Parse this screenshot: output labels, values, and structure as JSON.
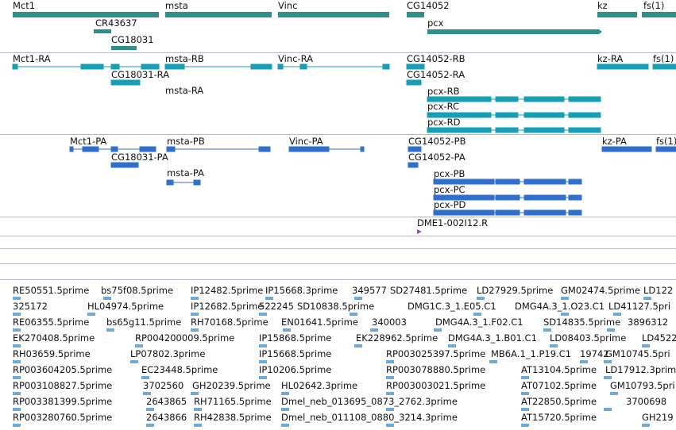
{
  "colors": {
    "gene": "#2e8f8c",
    "transcript": "#169fb4",
    "protein": "#2f6fd0",
    "est": "#6fa8dc",
    "marker": "#9b44c8",
    "divider": "#b8b8c8"
  },
  "tracks": {
    "genes": {
      "labels": [
        "Mct1",
        "CR43637",
        "CG18031",
        "msta",
        "Vinc",
        "CG14052",
        "pcx",
        "kz",
        "fs(1)"
      ]
    },
    "transcripts": {
      "labels": [
        "Mct1-RA",
        "CG18031-RA",
        "msta-RB",
        "msta-RA",
        "Vinc-RA",
        "CG14052-RB",
        "CG14052-RA",
        "pcx-RB",
        "pcx-RC",
        "pcx-RD",
        "kz-RA",
        "fs(1)"
      ]
    },
    "proteins": {
      "labels": [
        "Mct1-PA",
        "CG18031-PA",
        "msta-PB",
        "msta-PA",
        "Vinc-PA",
        "CG14052-PB",
        "CG14052-PA",
        "pcx-PB",
        "pcx-PC",
        "pcx-PD",
        "kz-PA",
        "fs(1)"
      ]
    },
    "markers": {
      "labels": [
        "DME1-002I12.R"
      ]
    },
    "ests": {
      "labels": [
        "RE50551.5prime",
        "bs75f08.5prime",
        "IP12482.5prime",
        "IP15668.3prime",
        "349577",
        "SD27481.5prime",
        "LD27929.5prime",
        "GM02474.5prime",
        "LD122",
        "325172",
        "HL04974.5prime",
        "IP12682.5prime",
        "522245",
        "SD10838.5prime",
        "DMG1C.3_1.E05.C1",
        "DMG4A.3_1.O23.C1",
        "LD41127.5pri",
        "RE06355.5prime",
        "bs65g11.5prime",
        "RH70168.5prime",
        "EN01641.5prime",
        "340003",
        "DMG4A.3_1.F02.C1",
        "SD14835.5prime",
        "3896312",
        "EK270408.5prime",
        "RP004200009.5prime",
        "IP15868.5prime",
        "EK228962.5prime",
        "DMG4A.3_1.B01.C1",
        "LD08403.5prime",
        "LD4522",
        "RH03659.5prime",
        "LP07802.3prime",
        "IP15668.5prime",
        "RP003025397.5prime",
        "MB6A.1_1.P19.C1",
        "19742",
        "GM10745.5pri",
        "RP003604205.5prime",
        "EC23448.5prime",
        "IP10206.5prime",
        "RP003078880.5prime",
        "AT13104.5prime",
        "LD17912.3prime",
        "RP003108827.5prime",
        "3702560",
        "GH20239.5prime",
        "HL02642.3prime",
        "RP003003021.5prime",
        "AT07102.5prime",
        "GM10793.5pri",
        "RP003381399.5prime",
        "2643865",
        "RH71165.5prime",
        "Dmel_neb_013695_0873_2762.3prime",
        "AT22850.5prime",
        "3700698",
        "RP003280760.5prime",
        "2643866",
        "RH42838.5prime",
        "Dmel_neb_011108_0880_3214.3prime",
        "AT15720.5prime",
        "GH219"
      ]
    }
  }
}
